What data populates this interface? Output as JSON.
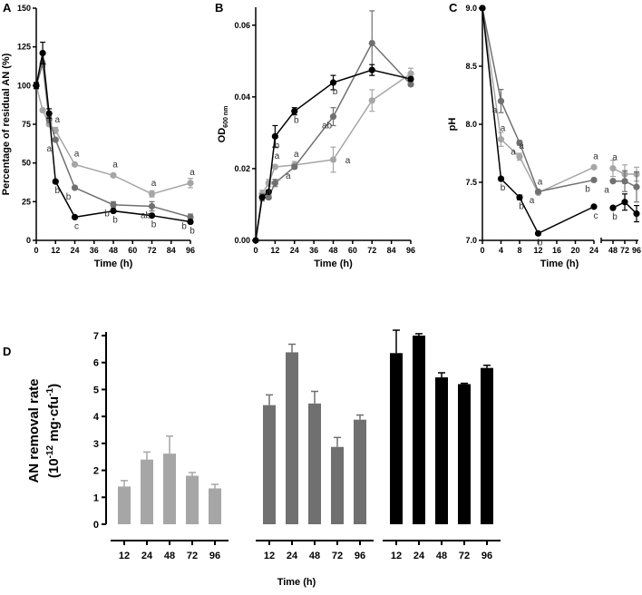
{
  "colors": {
    "light": "#a6a6a6",
    "mid": "#707070",
    "dark": "#000000"
  },
  "chart_data": [
    {
      "panel": "A",
      "type": "line",
      "xlabel": "Time (h)",
      "ylabel": "Percentage of residual AN (%)",
      "ylim": [
        0,
        150
      ],
      "xlim": [
        0,
        96
      ],
      "xticks": [
        0,
        12,
        24,
        36,
        48,
        60,
        72,
        84,
        96
      ],
      "yticks": [
        0,
        25,
        50,
        75,
        100,
        125,
        150
      ],
      "x": [
        0,
        4,
        8,
        12,
        24,
        48,
        72,
        96
      ],
      "series": [
        {
          "color": "light",
          "values": [
            100,
            84,
            75,
            71,
            49,
            42,
            30,
            37
          ],
          "err": [
            2,
            1,
            1,
            2,
            1,
            1,
            2,
            3
          ]
        },
        {
          "color": "mid",
          "values": [
            100,
            114,
            78,
            65,
            34,
            23,
            22,
            15
          ],
          "err": [
            2,
            2,
            2,
            1,
            1,
            2,
            3,
            2
          ]
        },
        {
          "color": "dark",
          "values": [
            100,
            121,
            82,
            38,
            15,
            19,
            16,
            12
          ],
          "err": [
            2,
            7,
            3,
            1,
            1,
            1,
            1,
            1
          ]
        }
      ],
      "annotations": [
        [
          12,
          "a",
          "a",
          "b"
        ],
        [
          24,
          "a",
          "b",
          "c"
        ],
        [
          48,
          "a",
          "b",
          "b"
        ],
        [
          72,
          "a",
          "ab",
          "b"
        ],
        [
          96,
          "a",
          "b",
          "b"
        ]
      ]
    },
    {
      "panel": "B",
      "type": "line",
      "xlabel": "Time (h)",
      "ylabel": "OD",
      "ylabel_sub": "600 nm",
      "ylim": [
        0,
        0.065
      ],
      "xlim": [
        0,
        96
      ],
      "xticks": [
        0,
        12,
        24,
        36,
        48,
        60,
        72,
        84,
        96
      ],
      "yticks": [
        "0.00",
        "0.02",
        "0.04",
        "0.06"
      ],
      "x": [
        0,
        4,
        8,
        12,
        24,
        48,
        72,
        96
      ],
      "series": [
        {
          "color": "light",
          "values": [
            0,
            0.013,
            0.016,
            0.0205,
            0.021,
            0.0225,
            0.039,
            0.0465
          ],
          "err": [
            0,
            0.001,
            0.001,
            0.0005,
            0.001,
            0.0035,
            0.003,
            0.0015
          ]
        },
        {
          "color": "mid",
          "values": [
            0,
            0.012,
            0.012,
            0.016,
            0.0205,
            0.0345,
            0.055,
            0.0435
          ],
          "err": [
            0,
            0.001,
            0.0005,
            0.001,
            0.0005,
            0.0025,
            0.009,
            0.0005
          ]
        },
        {
          "color": "dark",
          "values": [
            0,
            0.012,
            0.0135,
            0.029,
            0.036,
            0.044,
            0.0475,
            0.045
          ],
          "err": [
            0,
            0.0005,
            0.0005,
            0.003,
            0.001,
            0.002,
            0.0015,
            0.0005
          ]
        }
      ],
      "annotations": [
        [
          12,
          "a",
          "a",
          "b"
        ],
        [
          24,
          "a",
          "a",
          "b"
        ],
        [
          48,
          "a",
          "ab",
          "b"
        ]
      ]
    },
    {
      "panel": "C",
      "type": "line",
      "xlabel": "Time (h)",
      "ylabel": "pH",
      "ylim": [
        7.0,
        9.0
      ],
      "xticks": [
        0,
        4,
        8,
        12,
        16,
        20,
        24,
        48,
        72,
        96
      ],
      "yticks": [
        "7.0",
        "7.5",
        "8.0",
        "8.5",
        "9.0"
      ],
      "x": [
        0,
        4,
        8,
        12,
        24,
        48,
        72,
        96
      ],
      "series": [
        {
          "color": "light",
          "values": [
            9.0,
            7.87,
            7.72,
            7.41,
            7.63,
            7.62,
            7.57,
            7.57
          ],
          "err": [
            0,
            0.06,
            0.03,
            0.01,
            0.01,
            0.07,
            0.08,
            0.06
          ]
        },
        {
          "color": "mid",
          "values": [
            9.0,
            8.2,
            7.84,
            7.42,
            7.52,
            7.51,
            7.51,
            7.46
          ],
          "err": [
            0,
            0.1,
            0.02,
            0.01,
            0.01,
            0.01,
            0.09,
            0.13
          ]
        },
        {
          "color": "dark",
          "values": [
            9.0,
            7.53,
            7.37,
            7.06,
            7.29,
            7.28,
            7.33,
            7.23
          ],
          "err": [
            0,
            0.01,
            0.02,
            0.01,
            0.01,
            0.01,
            0.07,
            0.07
          ]
        }
      ],
      "annotations": [
        [
          4,
          "a",
          "a",
          "b"
        ],
        [
          8,
          "a",
          "a",
          "b"
        ],
        [
          12,
          "a",
          "a",
          "b"
        ],
        [
          24,
          "a",
          "b",
          "c"
        ],
        [
          48,
          "a",
          "a",
          "b"
        ]
      ]
    },
    {
      "panel": "D",
      "type": "bar",
      "xlabel": "Time (h)",
      "ylabel": "AN removal rate",
      "ylabel2": "(10",
      "ylabel_exp": "-12",
      "ylabel3": " mg·cfu",
      "ylabel_exp2": "-1",
      "ylabel4": ")",
      "ylim": [
        0,
        7
      ],
      "yticks": [
        0,
        1,
        2,
        3,
        4,
        5,
        6,
        7
      ],
      "categories": [
        "12",
        "24",
        "48",
        "72",
        "96"
      ],
      "series": [
        {
          "color": "light",
          "values": [
            1.4,
            2.4,
            2.62,
            1.8,
            1.33
          ],
          "err": [
            0.22,
            0.28,
            0.65,
            0.12,
            0.15
          ]
        },
        {
          "color": "mid",
          "values": [
            4.42,
            6.38,
            4.48,
            2.87,
            3.88
          ],
          "err": [
            0.38,
            0.3,
            0.45,
            0.35,
            0.17
          ]
        },
        {
          "color": "dark",
          "values": [
            6.35,
            7.0,
            5.45,
            5.2,
            5.8
          ],
          "err": [
            0.85,
            0.07,
            0.17,
            0.03,
            0.1
          ]
        }
      ]
    }
  ]
}
